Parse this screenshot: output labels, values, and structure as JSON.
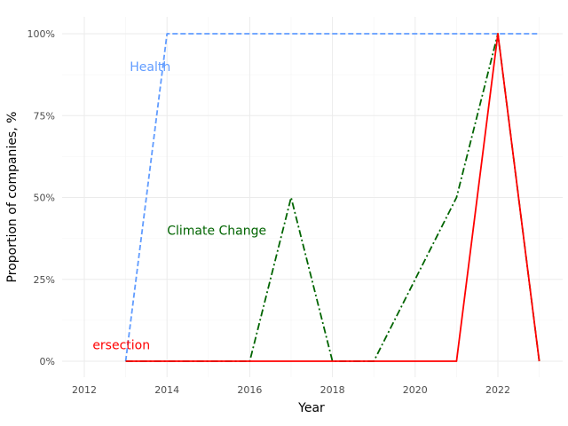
{
  "chart_data": {
    "type": "line",
    "title": "",
    "xlabel": "Year",
    "ylabel": "Proportion of companies, %",
    "xlim": [
      2011.5,
      2023.6
    ],
    "ylim": [
      -0.06,
      1.05
    ],
    "x_ticks": [
      2012,
      2014,
      2016,
      2018,
      2020,
      2022
    ],
    "x_tick_labels": [
      "2012",
      "2014",
      "2016",
      "2018",
      "2020",
      "2022"
    ],
    "y_ticks": [
      0,
      0.25,
      0.5,
      0.75,
      1.0
    ],
    "y_tick_labels": [
      "0%",
      "25%",
      "50%",
      "75%",
      "100%"
    ],
    "grid": true,
    "legend": "none",
    "series": [
      {
        "name": "Health",
        "color": "#619CFF",
        "dash": "dashed",
        "label": "Health",
        "label_x": 2013.1,
        "label_y": 0.9,
        "x": [
          2013,
          2014,
          2015,
          2016,
          2017,
          2018,
          2019,
          2020,
          2021,
          2022,
          2023
        ],
        "y": [
          0,
          1,
          1,
          1,
          1,
          1,
          1,
          1,
          1,
          1,
          1
        ]
      },
      {
        "name": "Climate Change",
        "color": "#006400",
        "dash": "dashdot",
        "label": "Climate Change",
        "label_x": 2014.0,
        "label_y": 0.4,
        "x": [
          2013,
          2014,
          2015,
          2016,
          2017,
          2018,
          2019,
          2020,
          2021,
          2022,
          2023
        ],
        "y": [
          0,
          0,
          0,
          0,
          0.5,
          0,
          0,
          0.25,
          0.5,
          1,
          0
        ]
      },
      {
        "name": "Intersection",
        "color": "#FF0000",
        "dash": "solid",
        "label": "ersection",
        "label_x": 2012.2,
        "label_y": 0.05,
        "x": [
          2013,
          2014,
          2015,
          2016,
          2017,
          2018,
          2019,
          2020,
          2021,
          2022,
          2023
        ],
        "y": [
          0,
          0,
          0,
          0,
          0,
          0,
          0,
          0,
          0,
          1,
          0
        ]
      }
    ]
  }
}
